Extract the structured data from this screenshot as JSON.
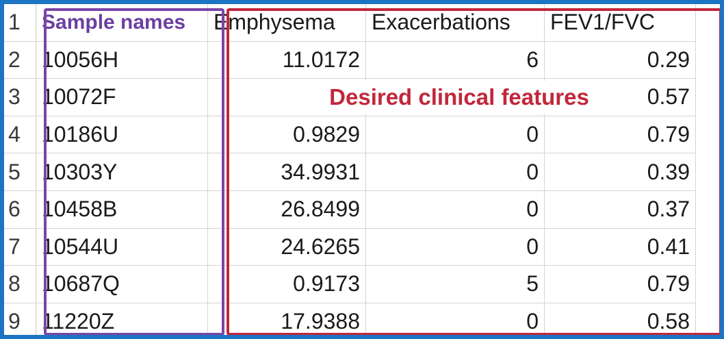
{
  "annotations": {
    "left_box_label": "Sample names",
    "right_box_label": "Desired clinical features"
  },
  "headers": {
    "row_number": "1",
    "emphysema": "Emphysema",
    "exacerbations": "Exacerbations",
    "fev1_fvc": "FEV1/FVC"
  },
  "rows": [
    {
      "row": "2",
      "sample": "10056H",
      "emphysema": "11.0172",
      "exacerbations": "6",
      "fev1_fvc": "0.29"
    },
    {
      "row": "3",
      "sample": "10072F",
      "emphysema": "",
      "exacerbations": "",
      "fev1_fvc": "0.57"
    },
    {
      "row": "4",
      "sample": "10186U",
      "emphysema": "0.9829",
      "exacerbations": "0",
      "fev1_fvc": "0.79"
    },
    {
      "row": "5",
      "sample": "10303Y",
      "emphysema": "34.9931",
      "exacerbations": "0",
      "fev1_fvc": "0.39"
    },
    {
      "row": "6",
      "sample": "10458B",
      "emphysema": "26.8499",
      "exacerbations": "0",
      "fev1_fvc": "0.37"
    },
    {
      "row": "7",
      "sample": "10544U",
      "emphysema": "24.6265",
      "exacerbations": "0",
      "fev1_fvc": "0.41"
    },
    {
      "row": "8",
      "sample": "10687Q",
      "emphysema": "0.9173",
      "exacerbations": "5",
      "fev1_fvc": "0.79"
    },
    {
      "row": "9",
      "sample": "11220Z",
      "emphysema": "17.9388",
      "exacerbations": "0",
      "fev1_fvc": "0.58"
    }
  ],
  "colors": {
    "frame": "#1d73c4",
    "sample_box": "#7a45a8",
    "features_box": "#c2273a"
  }
}
